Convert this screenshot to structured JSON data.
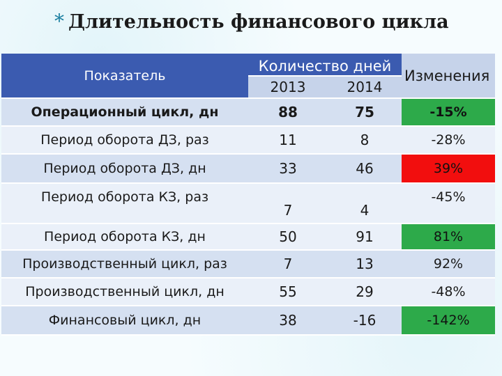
{
  "title": {
    "bullet": "*",
    "text": "Длительность финансового цикла"
  },
  "table": {
    "header": {
      "indicator": "Показатель",
      "days_group": "Количество дней",
      "year_2013": "2013",
      "year_2014": "2014",
      "change": "Изменения"
    },
    "rows": [
      {
        "label": "Операционный цикл, дн",
        "v2013": "88",
        "v2014": "75",
        "change": "-15%",
        "highlight": "green",
        "bold": true
      },
      {
        "label": "Период оборота ДЗ, раз",
        "v2013": "11",
        "v2014": "8",
        "change": "-28%",
        "highlight": "none",
        "bold": false
      },
      {
        "label": "Период оборота ДЗ, дн",
        "v2013": "33",
        "v2014": "46",
        "change": "39%",
        "highlight": "red",
        "bold": false
      },
      {
        "label": "Период оборота КЗ, раз",
        "v2013": "7",
        "v2014": "4",
        "change": "-45%",
        "highlight": "none",
        "bold": false
      },
      {
        "label": "Период оборота КЗ, дн",
        "v2013": "50",
        "v2014": "91",
        "change": "81%",
        "highlight": "green",
        "bold": false
      },
      {
        "label": "Производственный цикл, раз",
        "v2013": "7",
        "v2014": "13",
        "change": "92%",
        "highlight": "none",
        "bold": false
      },
      {
        "label": "Производственный цикл, дн",
        "v2013": "55",
        "v2014": "29",
        "change": "-48%",
        "highlight": "none",
        "bold": false
      },
      {
        "label": "Финансовый цикл, дн",
        "v2013": "38",
        "v2014": "-16",
        "change": "-142%",
        "highlight": "green",
        "bold": false
      }
    ]
  },
  "colors": {
    "header": "#3b5bb0",
    "subheader": "#c6d3ea",
    "row_dark": "#d5e0f1",
    "row_light": "#eaf0f9",
    "positive": "#2daa4a",
    "negative": "#f20e0e",
    "bullet": "#1b7fa0"
  }
}
